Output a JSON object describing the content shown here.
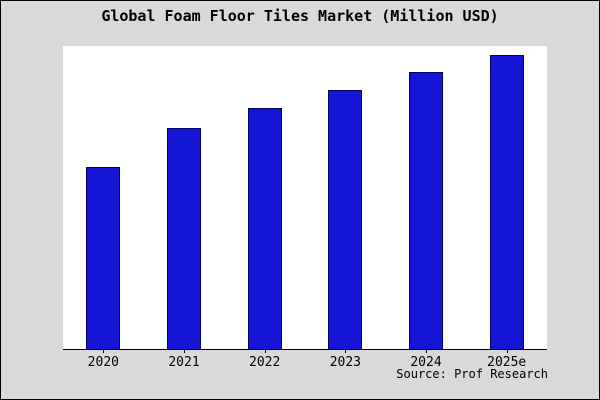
{
  "title": "Global Foam Floor Tiles Market (Million USD)",
  "source": "Source: Prof Research",
  "colors": {
    "background": "#d9d9d9",
    "plot_background": "#ffffff",
    "bar_fill": "#1515d6",
    "bar_border": "#000066",
    "axis": "#000000",
    "text": "#000000"
  },
  "chart_data": {
    "type": "bar",
    "categories": [
      "2020",
      "2021",
      "2022",
      "2023",
      "2024",
      "2025e"
    ],
    "values": [
      62,
      75,
      82,
      88,
      94,
      100
    ],
    "title": "Global Foam Floor Tiles Market (Million USD)",
    "xlabel": "",
    "ylabel": "",
    "ylim": [
      0,
      103
    ],
    "grid": false,
    "legend": false,
    "note": "no y-axis tick labels shown; values are relative units estimated from bar heights",
    "source": "Source: Prof Research"
  }
}
